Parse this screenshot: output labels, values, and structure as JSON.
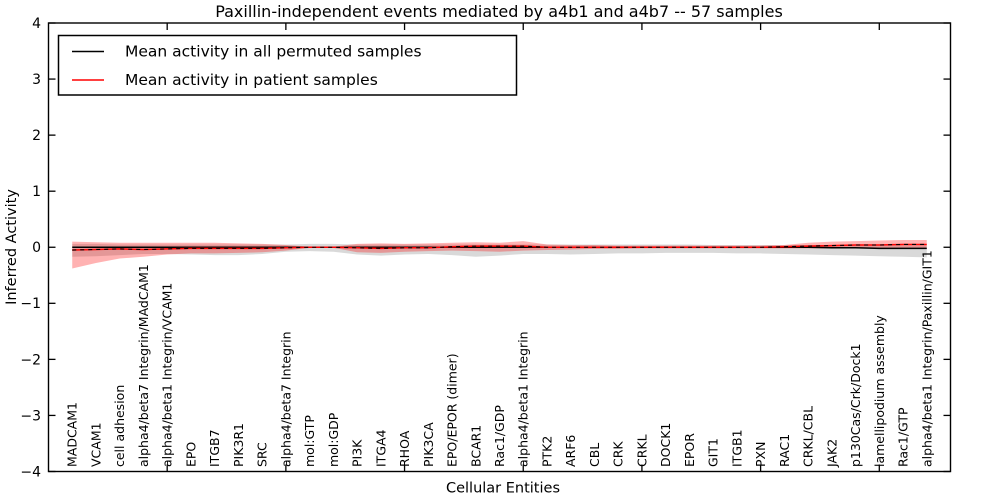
{
  "figure": {
    "background": "#ffffff",
    "frame_color": "#000000"
  },
  "chart_data": {
    "type": "line",
    "title": "Paxillin-independent events mediated by a4b1 and a4b7 -- 57 samples",
    "xlabel": "Cellular Entities",
    "ylabel": "Inferred Activity",
    "ylim": [
      -4,
      4
    ],
    "yticks": [
      -4,
      -3,
      -2,
      -1,
      0,
      1,
      2,
      3,
      4
    ],
    "xlim": [
      0,
      38
    ],
    "xticks_major": [
      5,
      10,
      15,
      20,
      25,
      30,
      35
    ],
    "grid": false,
    "legend_position": "upper-left",
    "categories": [
      "MADCAM1",
      "VCAM1",
      "cell adhesion",
      "alpha4/beta7 Integrin/MAdCAM1",
      "alpha4/beta1 Integrin/VCAM1",
      "EPO",
      "ITGB7",
      "PIK3R1",
      "SRC",
      "alpha4/beta7 Integrin",
      "mol:GTP",
      "mol:GDP",
      "PI3K",
      "ITGA4",
      "RHOA",
      "PIK3CA",
      "EPO/EPOR (dimer)",
      "BCAR1",
      "Rac1/GDP",
      "alpha4/beta1 Integrin",
      "PTK2",
      "ARF6",
      "CBL",
      "CRK",
      "CRKL",
      "DOCK1",
      "EPOR",
      "GIT1",
      "ITGB1",
      "PXN",
      "RAC1",
      "CRKL/CBL",
      "JAK2",
      "p130Cas/Crk/Dock1",
      "lamellipodium assembly",
      "Rac1/GTP",
      "alpha4/beta1 Integrin/Paxillin/GIT1"
    ],
    "series": [
      {
        "name": "Mean activity in all permuted samples",
        "color": "#000000",
        "style": "solid",
        "values": [
          0,
          0,
          0,
          0,
          0,
          0,
          0,
          0,
          0,
          0,
          0,
          0,
          0,
          0,
          0,
          0,
          0,
          0,
          0,
          0,
          0,
          0,
          0,
          0,
          0,
          0,
          0,
          0,
          0,
          0,
          0,
          0,
          -0.01,
          -0.01,
          -0.02,
          -0.02,
          -0.02
        ]
      },
      {
        "name": "Mean activity in patient samples",
        "color": "#ff0000",
        "style": "solid",
        "values": [
          -0.05,
          -0.04,
          -0.03,
          -0.04,
          -0.03,
          -0.02,
          -0.02,
          -0.02,
          -0.02,
          -0.01,
          0,
          0,
          -0.01,
          -0.02,
          -0.01,
          -0.01,
          0.01,
          0.02,
          0.02,
          0.02,
          0,
          0,
          0,
          0,
          0,
          0,
          0,
          0,
          0,
          0,
          0.01,
          0.02,
          0.03,
          0.04,
          0.04,
          0.05,
          0.05
        ]
      },
      {
        "name": "patient-mean-dashed-overlay",
        "color": "#000000",
        "style": "dashed",
        "values": [
          -0.05,
          -0.04,
          -0.03,
          -0.04,
          -0.03,
          -0.02,
          -0.02,
          -0.02,
          -0.02,
          -0.01,
          0,
          0,
          -0.01,
          -0.02,
          -0.01,
          -0.01,
          0.01,
          0.02,
          0.02,
          0.02,
          0,
          0,
          0,
          0,
          0,
          0,
          0,
          0,
          0,
          0,
          0.01,
          0.02,
          0.03,
          0.04,
          0.04,
          0.05,
          0.05
        ]
      }
    ],
    "bands": [
      {
        "name": "permuted-samples-band",
        "fill": "rgba(0,0,0,0.15)",
        "top": [
          0.06,
          0.06,
          0.05,
          0.05,
          0.05,
          0.05,
          0.05,
          0.05,
          0.05,
          0.05,
          0.06,
          0.06,
          0.05,
          0.05,
          0.05,
          0.05,
          0.05,
          0.05,
          0.05,
          0.05,
          0.05,
          0.05,
          0.05,
          0.05,
          0.05,
          0.05,
          0.05,
          0.04,
          0.04,
          0.04,
          0.04,
          0.04,
          0.04,
          0.04,
          0.03,
          0.03,
          0.03
        ],
        "bottom": [
          -0.17,
          -0.16,
          -0.14,
          -0.12,
          -0.12,
          -0.13,
          -0.14,
          -0.14,
          -0.12,
          -0.08,
          -0.07,
          -0.08,
          -0.13,
          -0.15,
          -0.13,
          -0.12,
          -0.14,
          -0.17,
          -0.15,
          -0.12,
          -0.12,
          -0.13,
          -0.12,
          -0.11,
          -0.11,
          -0.1,
          -0.1,
          -0.1,
          -0.11,
          -0.11,
          -0.12,
          -0.13,
          -0.14,
          -0.15,
          -0.16,
          -0.17,
          -0.18
        ]
      },
      {
        "name": "patient-samples-band",
        "fill": "rgba(255,0,0,0.30)",
        "top": [
          0.1,
          0.09,
          0.08,
          0.08,
          0.08,
          0.08,
          0.08,
          0.07,
          0.06,
          0.04,
          0.01,
          0.01,
          0.06,
          0.07,
          0.06,
          0.07,
          0.08,
          0.09,
          0.08,
          0.11,
          0.05,
          0.04,
          0.04,
          0.03,
          0.03,
          0.03,
          0.03,
          0.03,
          0.03,
          0.03,
          0.04,
          0.08,
          0.1,
          0.11,
          0.12,
          0.13,
          0.13
        ],
        "bottom": [
          -0.38,
          -0.28,
          -0.2,
          -0.17,
          -0.13,
          -0.11,
          -0.11,
          -0.1,
          -0.09,
          -0.06,
          -0.01,
          -0.01,
          -0.09,
          -0.1,
          -0.08,
          -0.07,
          -0.06,
          -0.07,
          -0.08,
          -0.06,
          -0.05,
          -0.04,
          -0.03,
          -0.03,
          -0.02,
          -0.02,
          -0.02,
          -0.02,
          -0.02,
          -0.02,
          -0.02,
          -0.02,
          -0.02,
          -0.02,
          -0.02,
          -0.02,
          -0.03
        ]
      }
    ],
    "legend": {
      "entries": [
        {
          "label": "Mean activity in all permuted samples",
          "color": "#000000"
        },
        {
          "label": "Mean activity in patient samples",
          "color": "#ff0000"
        }
      ]
    }
  }
}
